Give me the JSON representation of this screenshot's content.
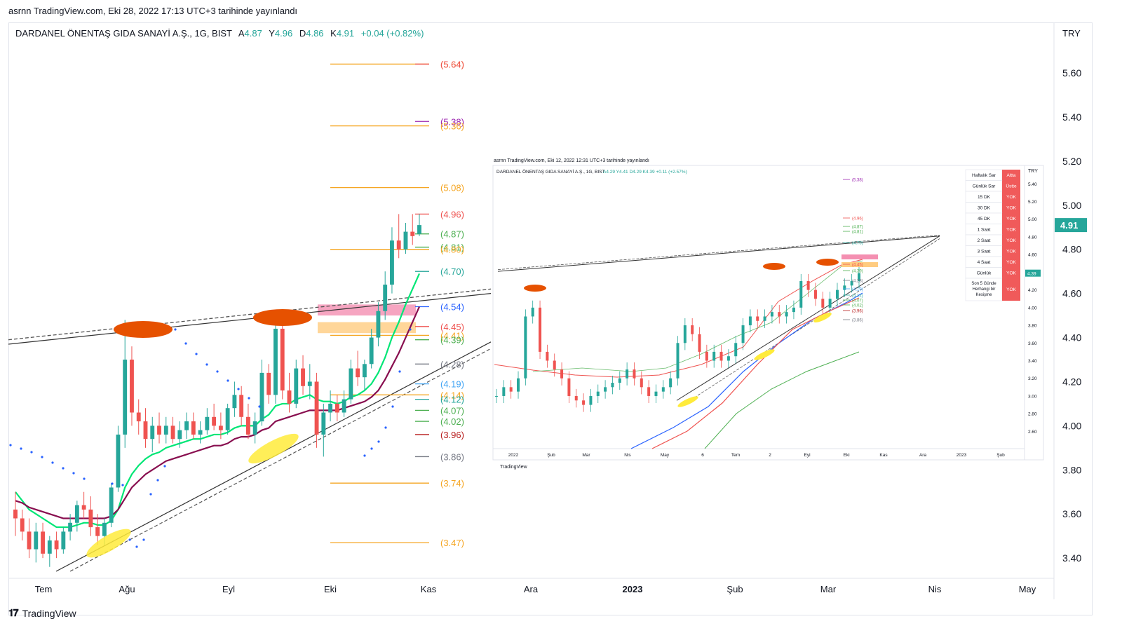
{
  "publish_line": "asrnn TradingView.com, Eki 28, 2022 17:13 UTC+3 tarihinde yayınlandı",
  "header": {
    "symbol": "DARDANEL ÖNENTAŞ GIDA SANAYİ A.Ş., 1G, BIST",
    "open_label": "A",
    "open": "4.87",
    "high_label": "Y",
    "high": "4.96",
    "low_label": "D",
    "low": "4.86",
    "close_label": "K",
    "close": "4.91",
    "change": "+0.04 (+0.82%)"
  },
  "currency": "TRY",
  "price_badge": "4.91",
  "brand": "TradingView",
  "colors": {
    "up": "#26a69a",
    "down": "#ef5350",
    "accent": "#26a69a"
  },
  "chart_data": [
    {
      "type": "line",
      "title": "DARDANEL ÖNENTAŞ GIDA SANAYİ A.Ş., 1G, BIST",
      "yaxis_ticks": [
        "5.60",
        "5.40",
        "5.20",
        "5.00",
        "4.80",
        "4.60",
        "4.40",
        "4.20",
        "4.00",
        "3.80",
        "3.60",
        "3.40"
      ],
      "ylim": [
        3.34,
        5.74
      ],
      "xaxis_ticks": [
        "Tem",
        "Ağu",
        "Eyl",
        "Eki",
        "Kas",
        "Ara",
        "2023",
        "Şub",
        "Mar",
        "Nis",
        "May"
      ],
      "last_price": 4.91,
      "levels": [
        {
          "label": "(5.64)",
          "value": 5.64,
          "color": "#f5a623"
        },
        {
          "label": "(5.64)",
          "value": 5.64,
          "color": "#ef5350"
        },
        {
          "label": "(5.38)",
          "value": 5.38,
          "color": "#9c27b0"
        },
        {
          "label": "(5.36)",
          "value": 5.36,
          "color": "#f5a623"
        },
        {
          "label": "(5.08)",
          "value": 5.08,
          "color": "#f5a623"
        },
        {
          "label": "(4.96)",
          "value": 4.96,
          "color": "#ef5350"
        },
        {
          "label": "(4.87)",
          "value": 4.87,
          "color": "#4caf50"
        },
        {
          "label": "(4.81)",
          "value": 4.81,
          "color": "#4caf50"
        },
        {
          "label": "(4.80)",
          "value": 4.8,
          "color": "#f5a623"
        },
        {
          "label": "(4.70)",
          "value": 4.7,
          "color": "#26a69a"
        },
        {
          "label": "(4.54)",
          "value": 4.54,
          "color": "#2962ff"
        },
        {
          "label": "(4.45)",
          "value": 4.45,
          "color": "#ef5350"
        },
        {
          "label": "(4.41)",
          "value": 4.41,
          "color": "#f5a623"
        },
        {
          "label": "(4.39)",
          "value": 4.39,
          "color": "#4caf50"
        },
        {
          "label": "(4.28)",
          "value": 4.28,
          "color": "#787b86"
        },
        {
          "label": "(4.19)",
          "value": 4.19,
          "color": "#42a5f5"
        },
        {
          "label": "(4.14)",
          "value": 4.14,
          "color": "#f5a623"
        },
        {
          "label": "(4.12)",
          "value": 4.12,
          "color": "#26a69a"
        },
        {
          "label": "(4.07)",
          "value": 4.07,
          "color": "#4caf50"
        },
        {
          "label": "(4.02)",
          "value": 4.02,
          "color": "#4caf50"
        },
        {
          "label": "(3.96)",
          "value": 3.96,
          "color": "#b71c1c"
        },
        {
          "label": "(3.86)",
          "value": 3.86,
          "color": "#787b86"
        },
        {
          "label": "(3.74)",
          "value": 3.74,
          "color": "#f5a623"
        },
        {
          "label": "(3.47)",
          "value": 3.47,
          "color": "#f5a623"
        }
      ],
      "candles": [
        [
          3.62,
          3.7,
          3.5,
          3.58
        ],
        [
          3.58,
          3.62,
          3.48,
          3.52
        ],
        [
          3.52,
          3.58,
          3.4,
          3.44
        ],
        [
          3.44,
          3.56,
          3.38,
          3.52
        ],
        [
          3.52,
          3.56,
          3.4,
          3.42
        ],
        [
          3.42,
          3.5,
          3.36,
          3.48
        ],
        [
          3.48,
          3.52,
          3.4,
          3.44
        ],
        [
          3.44,
          3.54,
          3.42,
          3.52
        ],
        [
          3.52,
          3.6,
          3.48,
          3.56
        ],
        [
          3.56,
          3.66,
          3.52,
          3.64
        ],
        [
          3.64,
          3.7,
          3.58,
          3.62
        ],
        [
          3.62,
          3.68,
          3.5,
          3.54
        ],
        [
          3.54,
          3.6,
          3.46,
          3.5
        ],
        [
          3.5,
          3.58,
          3.46,
          3.56
        ],
        [
          3.56,
          3.74,
          3.54,
          3.72
        ],
        [
          3.72,
          4.0,
          3.7,
          3.96
        ],
        [
          3.96,
          4.48,
          3.9,
          4.3
        ],
        [
          4.3,
          4.36,
          4.0,
          4.06
        ],
        [
          4.06,
          4.12,
          3.96,
          4.02
        ],
        [
          4.02,
          4.08,
          3.9,
          3.94
        ],
        [
          3.94,
          4.04,
          3.88,
          4.0
        ],
        [
          4.0,
          4.06,
          3.92,
          3.96
        ],
        [
          3.96,
          4.04,
          3.92,
          4.0
        ],
        [
          4.0,
          4.04,
          3.92,
          3.94
        ],
        [
          3.94,
          4.02,
          3.9,
          3.98
        ],
        [
          3.98,
          4.06,
          3.94,
          4.02
        ],
        [
          4.02,
          4.06,
          3.94,
          3.96
        ],
        [
          3.96,
          4.02,
          3.92,
          3.98
        ],
        [
          3.98,
          4.08,
          3.96,
          4.04
        ],
        [
          4.04,
          4.1,
          3.98,
          4.0
        ],
        [
          4.0,
          4.06,
          3.94,
          3.98
        ],
        [
          3.98,
          4.1,
          3.96,
          4.08
        ],
        [
          4.08,
          4.2,
          4.04,
          4.14
        ],
        [
          4.14,
          4.18,
          4.0,
          4.04
        ],
        [
          4.04,
          4.1,
          3.94,
          3.96
        ],
        [
          3.96,
          4.06,
          3.92,
          4.02
        ],
        [
          4.02,
          4.3,
          4.0,
          4.24
        ],
        [
          4.24,
          4.28,
          4.1,
          4.14
        ],
        [
          4.14,
          4.5,
          4.1,
          4.44
        ],
        [
          4.44,
          4.48,
          4.12,
          4.16
        ],
        [
          4.16,
          4.24,
          4.06,
          4.1
        ],
        [
          4.1,
          4.3,
          4.08,
          4.26
        ],
        [
          4.26,
          4.32,
          4.14,
          4.18
        ],
        [
          4.18,
          4.28,
          4.12,
          4.2
        ],
        [
          4.2,
          4.24,
          3.9,
          3.96
        ],
        [
          3.96,
          4.1,
          3.86,
          4.06
        ],
        [
          4.06,
          4.16,
          4.02,
          4.1
        ],
        [
          4.1,
          4.14,
          4.02,
          4.06
        ],
        [
          4.06,
          4.16,
          4.04,
          4.12
        ],
        [
          4.12,
          4.3,
          4.1,
          4.26
        ],
        [
          4.26,
          4.34,
          4.18,
          4.22
        ],
        [
          4.22,
          4.3,
          4.16,
          4.28
        ],
        [
          4.28,
          4.44,
          4.26,
          4.4
        ],
        [
          4.4,
          4.56,
          4.36,
          4.52
        ],
        [
          4.52,
          4.7,
          4.48,
          4.64
        ],
        [
          4.64,
          4.9,
          4.6,
          4.84
        ],
        [
          4.84,
          4.96,
          4.76,
          4.8
        ],
        [
          4.8,
          4.92,
          4.78,
          4.88
        ],
        [
          4.88,
          4.96,
          4.82,
          4.86
        ],
        [
          4.87,
          4.96,
          4.86,
          4.91
        ]
      ],
      "moving_averages": [
        {
          "name": "ema_fast",
          "color": "#00e676",
          "values": [
            3.7,
            3.66,
            3.62,
            3.6,
            3.58,
            3.56,
            3.54,
            3.54,
            3.54,
            3.55,
            3.56,
            3.56,
            3.55,
            3.55,
            3.57,
            3.62,
            3.72,
            3.78,
            3.82,
            3.85,
            3.87,
            3.88,
            3.9,
            3.91,
            3.92,
            3.93,
            3.94,
            3.94,
            3.95,
            3.96,
            3.96,
            3.97,
            3.99,
            4.0,
            4.0,
            4.0,
            4.03,
            4.05,
            4.09,
            4.1,
            4.1,
            4.12,
            4.13,
            4.14,
            4.12,
            4.11,
            4.11,
            4.1,
            4.11,
            4.13,
            4.14,
            4.16,
            4.19,
            4.24,
            4.31,
            4.4,
            4.47,
            4.55,
            4.62,
            4.69
          ]
        },
        {
          "name": "ema_slow",
          "color": "#880e4f",
          "values": [
            3.66,
            3.65,
            3.63,
            3.62,
            3.61,
            3.6,
            3.59,
            3.58,
            3.58,
            3.58,
            3.58,
            3.58,
            3.58,
            3.58,
            3.59,
            3.62,
            3.67,
            3.72,
            3.75,
            3.78,
            3.8,
            3.82,
            3.84,
            3.85,
            3.86,
            3.87,
            3.88,
            3.89,
            3.9,
            3.91,
            3.91,
            3.92,
            3.94,
            3.95,
            3.95,
            3.96,
            3.98,
            3.99,
            4.02,
            4.03,
            4.04,
            4.05,
            4.06,
            4.07,
            4.07,
            4.07,
            4.07,
            4.07,
            4.08,
            4.09,
            4.1,
            4.11,
            4.13,
            4.16,
            4.21,
            4.27,
            4.33,
            4.4,
            4.47,
            4.54
          ]
        }
      ],
      "zones": [
        {
          "name": "resistance_zone",
          "color": "#f48fb1",
          "from": 4.5,
          "to": 4.55
        },
        {
          "name": "support_zone",
          "color": "#ffcc80",
          "from": 4.42,
          "to": 4.47
        }
      ]
    },
    {
      "type": "line",
      "title": "DARDANEL ÖNENTAŞ GIDA SANAYİ A.Ş., 1G, BIST",
      "publish_line": "asrnn TradingView.com, Eki 12, 2022 12:31 UTC+3 tarihinde yayınlandı",
      "ohlc": "A4.29 Y4.41 D4.29 K4.39 +0.11 (+2.57%)",
      "currency": "TRY",
      "last_price": 4.39,
      "yaxis_ticks": [
        "5.40",
        "5.20",
        "5.00",
        "4.80",
        "4.60",
        "4.40",
        "4.20",
        "4.00",
        "3.80",
        "3.60",
        "3.40",
        "3.20",
        "3.00",
        "2.80",
        "2.60"
      ],
      "xaxis_ticks": [
        "2022",
        "Şub",
        "Mar",
        "Nis",
        "May",
        "6",
        "Tem",
        "2",
        "Eyl",
        "Eki",
        "Kas",
        "Ara",
        "2023",
        "Şub"
      ],
      "levels": [
        "(5.38)",
        "(4.96)",
        "(4.87)",
        "(4.81)",
        "(4.70)",
        "(4.45)",
        "(4.39)",
        "(4.28)",
        "(4.19)",
        "(4.12)",
        "(4.07)",
        "(4.02)",
        "(3.96)",
        "(3.86)"
      ],
      "signal_table": [
        {
          "label": "Haftalık Sar",
          "value": "Altta"
        },
        {
          "label": "Günlük Sar",
          "value": "Üstte"
        },
        {
          "label": "15 DK",
          "value": "YOK"
        },
        {
          "label": "30 DK",
          "value": "YOK"
        },
        {
          "label": "45 DK",
          "value": "YOK"
        },
        {
          "label": "1 Saat",
          "value": "YOK"
        },
        {
          "label": "2 Saat",
          "value": "YOK"
        },
        {
          "label": "3 Saat",
          "value": "YOK"
        },
        {
          "label": "4 Saat",
          "value": "YOK"
        },
        {
          "label": "Günlük",
          "value": "YOK"
        },
        {
          "label": "Son 5 Günde Herhangi bir Kesişme",
          "value": "YOK"
        }
      ],
      "brand": "TradingView"
    }
  ]
}
